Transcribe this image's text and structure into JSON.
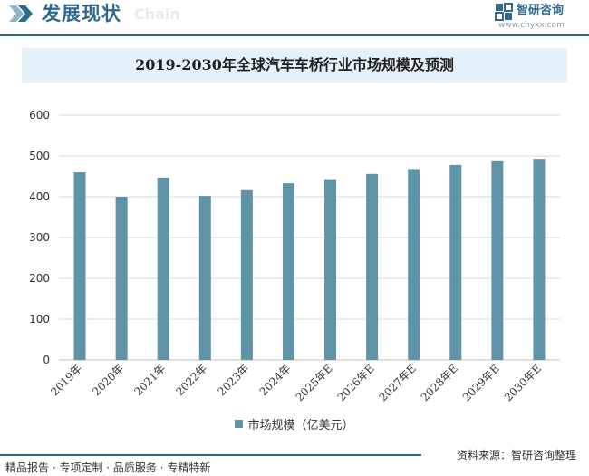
{
  "header": {
    "title": "发展现状",
    "subtitle": "Chain",
    "brand_name": "智研咨询",
    "brand_url": "www.chyxx.com"
  },
  "chart_data": {
    "type": "bar",
    "title": "2019-2030年全球汽车车桥行业市场规模及预测",
    "categories": [
      "2019年",
      "2020年",
      "2021年",
      "2022年",
      "2023年",
      "2024年",
      "2025年E",
      "2026年E",
      "2027年E",
      "2028年E",
      "2029年E",
      "2030年E"
    ],
    "series": [
      {
        "name": "市场规模（亿美元）",
        "values": [
          460,
          400,
          447,
          402,
          416,
          433,
          443,
          456,
          468,
          478,
          487,
          493
        ]
      }
    ],
    "yticks": [
      "0",
      "100",
      "200",
      "300",
      "400",
      "500",
      "600"
    ],
    "ylim": [
      0,
      600
    ],
    "grid": true,
    "legend_position": "bottom",
    "colors": {
      "bar": "#5e93a8",
      "grid": "#d9d9d9",
      "axis": "#bfbfbf"
    }
  },
  "footer": {
    "left": "精品报告 · 专项定制 · 品质服务 · 专精特新",
    "source": "资料来源：智研咨询整理"
  }
}
